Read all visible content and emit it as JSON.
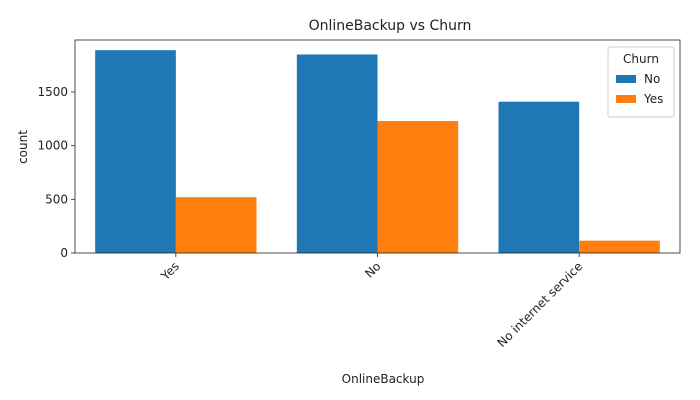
{
  "chart_data": {
    "type": "bar",
    "title": "OnlineBackup vs Churn",
    "xlabel": "OnlineBackup",
    "ylabel": "count",
    "categories": [
      "Yes",
      "No",
      "No internet service"
    ],
    "series": [
      {
        "name": "No",
        "values": [
          1890,
          1850,
          1410
        ],
        "color": "#1f77b4"
      },
      {
        "name": "Yes",
        "values": [
          520,
          1230,
          115
        ],
        "color": "#ff7f0e"
      }
    ],
    "ylim": [
      0,
      1985
    ],
    "yticks": [
      0,
      500,
      1000,
      1500
    ],
    "legend": {
      "title": "Churn",
      "placement": "top-right"
    },
    "grid": false,
    "xtick_rotation": 45
  }
}
